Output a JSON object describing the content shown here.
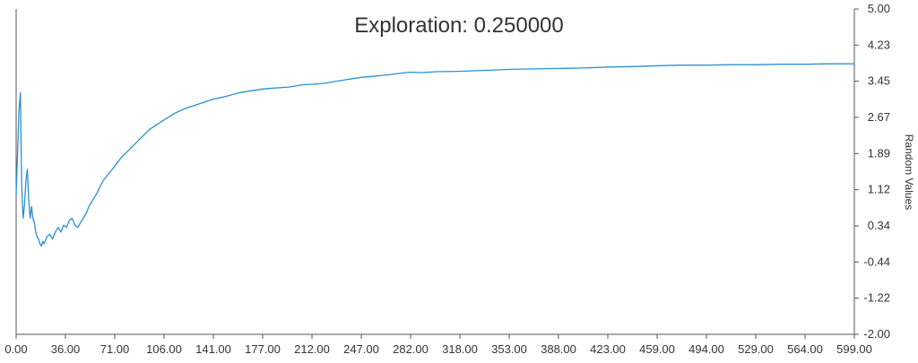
{
  "chart_data": {
    "type": "line",
    "title": "Exploration: 0.250000",
    "xlabel": "",
    "ylabel": "Random Values",
    "xlim": [
      0,
      599
    ],
    "ylim": [
      -2.0,
      5.0
    ],
    "x_ticks": [
      "0.00",
      "36.00",
      "71.00",
      "106.00",
      "141.00",
      "177.00",
      "212.00",
      "247.00",
      "282.00",
      "318.00",
      "353.00",
      "388.00",
      "423.00",
      "459.00",
      "494.00",
      "529.00",
      "564.00",
      "599.00"
    ],
    "y_ticks": [
      "5.00",
      "4.23",
      "3.45",
      "2.67",
      "1.89",
      "1.12",
      "0.34",
      "-0.44",
      "-1.22",
      "-2.00"
    ],
    "grid": false,
    "colors": {
      "line": "#2b8fd6",
      "axis": "#555555",
      "text": "#333333"
    },
    "series": [
      {
        "x": [
          0,
          1,
          2,
          3,
          4,
          5,
          6,
          7,
          8,
          9,
          10,
          11,
          12,
          13,
          14,
          15,
          16,
          17,
          18,
          19,
          20,
          22,
          24,
          26,
          28,
          30,
          32,
          34,
          36,
          38,
          40,
          42,
          44,
          46,
          48,
          50,
          52,
          55,
          58,
          62,
          66,
          70,
          75,
          80,
          85,
          90,
          95,
          100,
          106,
          113,
          120,
          130,
          141,
          150,
          160,
          170,
          177,
          185,
          195,
          205,
          212,
          220,
          230,
          240,
          247,
          255,
          265,
          275,
          282,
          290,
          300,
          318,
          335,
          353,
          370,
          388,
          405,
          423,
          440,
          459,
          475,
          494,
          510,
          529,
          545,
          564,
          580,
          599
        ],
        "y": [
          1.0,
          1.9,
          2.8,
          3.2,
          1.2,
          0.5,
          0.8,
          1.3,
          1.55,
          0.9,
          0.5,
          0.75,
          0.5,
          0.4,
          0.2,
          0.1,
          0.05,
          -0.05,
          -0.1,
          0.0,
          -0.05,
          0.1,
          0.15,
          0.05,
          0.2,
          0.3,
          0.2,
          0.35,
          0.3,
          0.45,
          0.5,
          0.35,
          0.3,
          0.4,
          0.5,
          0.6,
          0.75,
          0.9,
          1.05,
          1.3,
          1.45,
          1.6,
          1.8,
          1.95,
          2.1,
          2.25,
          2.4,
          2.5,
          2.62,
          2.75,
          2.85,
          2.95,
          3.06,
          3.12,
          3.2,
          3.25,
          3.28,
          3.3,
          3.32,
          3.37,
          3.38,
          3.4,
          3.45,
          3.5,
          3.53,
          3.55,
          3.58,
          3.62,
          3.64,
          3.63,
          3.65,
          3.66,
          3.68,
          3.7,
          3.71,
          3.72,
          3.73,
          3.75,
          3.76,
          3.78,
          3.79,
          3.79,
          3.8,
          3.8,
          3.81,
          3.81,
          3.82,
          3.82
        ]
      }
    ]
  }
}
